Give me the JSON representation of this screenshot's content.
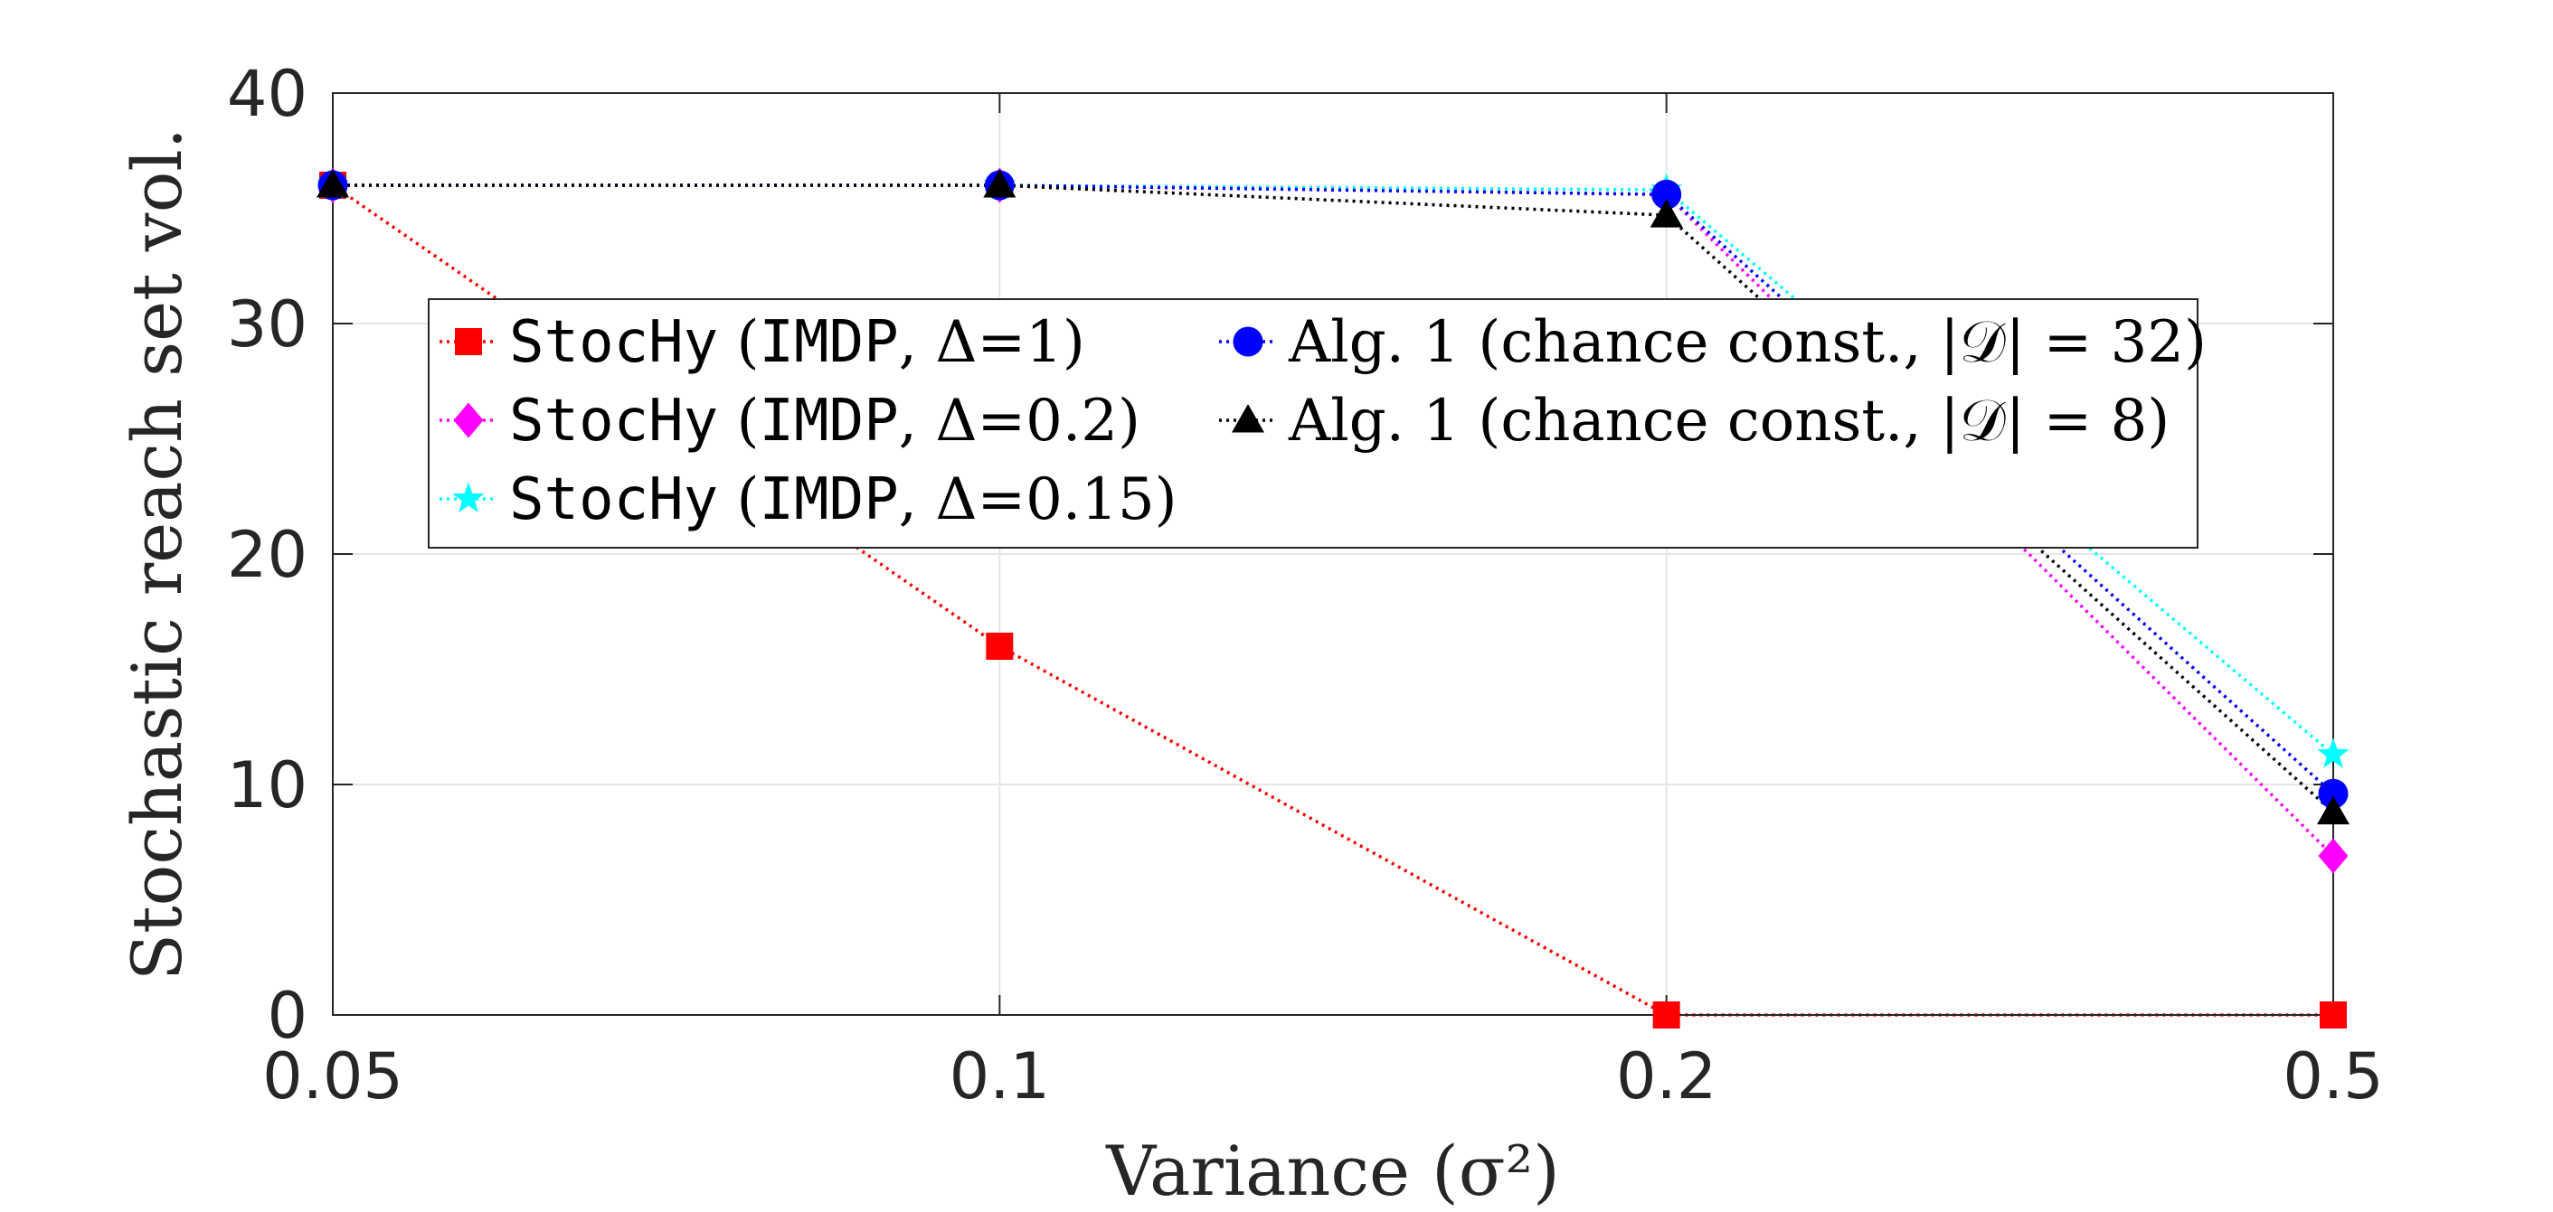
{
  "chart_data": {
    "type": "line",
    "title": "",
    "xlabel": "Variance (σ²)",
    "ylabel": "Stochastic reach set vol.",
    "x_ticks": [
      "0.05",
      "0.1",
      "0.2",
      "0.5"
    ],
    "y_ticks": [
      "0",
      "10",
      "20",
      "30",
      "40"
    ],
    "ylim": [
      0,
      40
    ],
    "grid": true,
    "legend_position": "upper-left-center",
    "series": [
      {
        "name": "StocHy (IMDP, Δ=1)",
        "tool": "StocHy",
        "method": "IMDP",
        "param": "Δ=1",
        "color": "#ff0000",
        "marker": "square",
        "values": [
          36,
          16,
          0,
          0
        ]
      },
      {
        "name": "StocHy (IMDP, Δ=0.2)",
        "tool": "StocHy",
        "method": "IMDP",
        "param": "Δ=0.2",
        "color": "#ff00ff",
        "marker": "diamond",
        "values": [
          36,
          36,
          35.6,
          6.9
        ]
      },
      {
        "name": "StocHy (IMDP, Δ=0.15)",
        "tool": "StocHy",
        "method": "IMDP",
        "param": "Δ=0.15",
        "color": "#00ffff",
        "marker": "star",
        "values": [
          36,
          36,
          35.8,
          11.3
        ]
      },
      {
        "name": "Alg. 1 (chance const., |𝒟| = 32)",
        "color": "#0000ff",
        "marker": "circle",
        "values": [
          36,
          36,
          35.6,
          9.6
        ]
      },
      {
        "name": "Alg. 1 (chance const., |𝒟| = 8)",
        "color": "#000000",
        "marker": "triangle",
        "values": [
          36,
          36,
          34.7,
          8.8
        ]
      }
    ]
  }
}
